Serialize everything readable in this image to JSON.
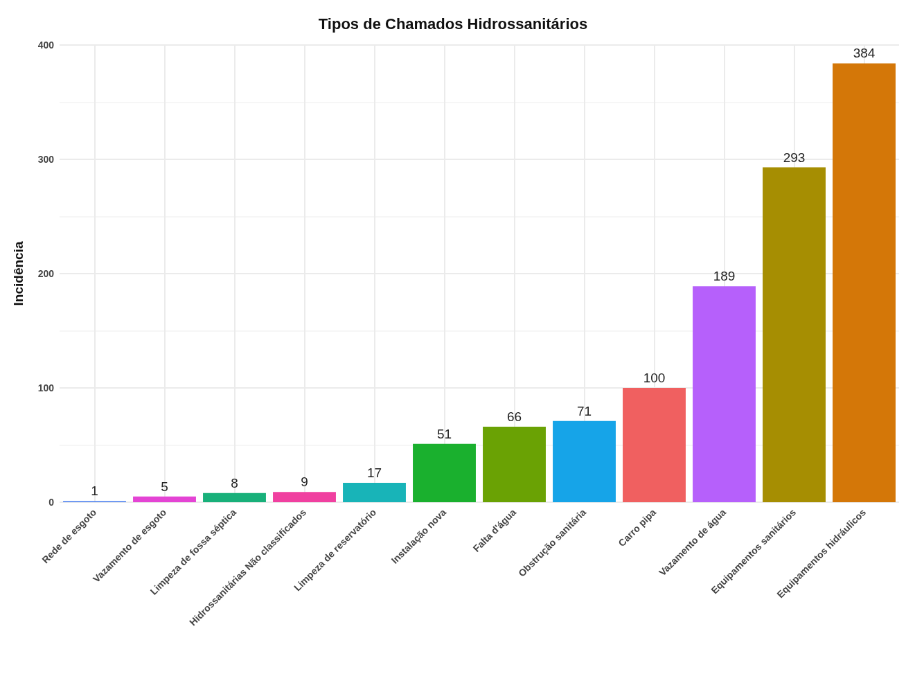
{
  "chart_data": {
    "type": "bar",
    "title": "Tipos de Chamados Hidrossanitários",
    "ylabel": "Incidência",
    "categories": [
      "Rede de esgoto",
      "Vazamento de esgoto",
      "Limpeza de fossa séptica",
      "Hidrossanitárias Não classificados",
      "Limpeza de reservatório",
      "Instalação nova",
      "Falta d'água",
      "Obstrução sanitária",
      "Carro pipa",
      "Vazamento de água",
      "Equipamentos sanitários",
      "Equipamentos hidráulicos"
    ],
    "values": [
      1,
      5,
      8,
      9,
      17,
      51,
      66,
      71,
      100,
      189,
      293,
      384
    ],
    "colors": [
      "#5a8af0",
      "#e444d4",
      "#18b07a",
      "#f040a0",
      "#18b4b8",
      "#1ab02e",
      "#6aa204",
      "#16a4e8",
      "#f06060",
      "#b660fb",
      "#a68e02",
      "#d47708"
    ],
    "ylim": [
      0,
      400
    ],
    "yticks": [
      0,
      100,
      200,
      300,
      400
    ],
    "grid": true,
    "data_labels": true
  }
}
